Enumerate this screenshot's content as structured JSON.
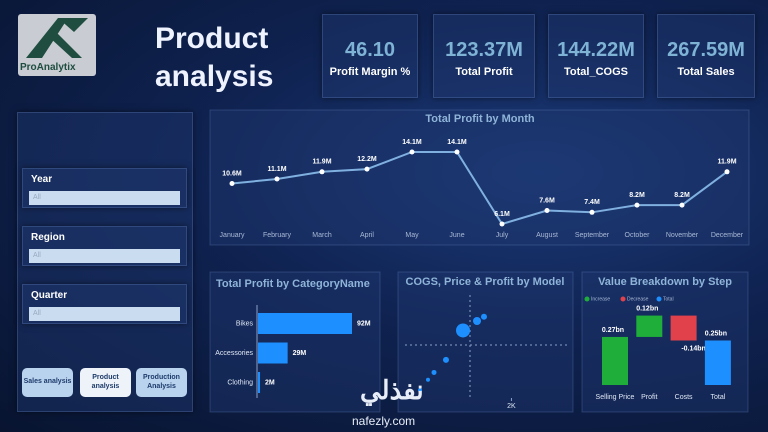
{
  "logo": {
    "text": "ProAnalytix"
  },
  "header": {
    "title": "Product analysis"
  },
  "kpis": [
    {
      "value": "46.10",
      "label": "Profit Margin %"
    },
    {
      "value": "123.37M",
      "label": "Total Profit"
    },
    {
      "value": "144.22M",
      "label": "Total_COGS"
    },
    {
      "value": "267.59M",
      "label": "Total Sales"
    }
  ],
  "slicers": [
    {
      "label": "Year",
      "value": "All"
    },
    {
      "label": "Region",
      "value": "All"
    },
    {
      "label": "Quarter",
      "value": "All"
    }
  ],
  "buttons": [
    "Sales analysis",
    "Product analysis",
    "Production Analysis"
  ],
  "watermark": {
    "arabic": "نفذلي",
    "url": "nafezly.com"
  },
  "chart_data": [
    {
      "type": "line",
      "title": "Total Profit by Month",
      "color": "#7fb0e0",
      "categories": [
        "January",
        "February",
        "March",
        "April",
        "May",
        "June",
        "July",
        "August",
        "September",
        "October",
        "November",
        "December"
      ],
      "values": [
        10.6,
        11.1,
        11.9,
        12.2,
        14.1,
        14.1,
        6.1,
        7.6,
        7.4,
        8.2,
        8.2,
        11.9
      ],
      "value_labels": [
        "10.6M",
        "11.1M",
        "11.9M",
        "12.2M",
        "14.1M",
        "14.1M",
        "6.1M",
        "7.6M",
        "7.4M",
        "8.2M",
        "8.2M",
        "11.9M"
      ]
    },
    {
      "type": "hbar",
      "title": "Total Profit by CategoryName",
      "color": "#1e8fff",
      "categories": [
        "Bikes",
        "Accessories",
        "Clothing"
      ],
      "values": [
        92,
        29,
        2
      ],
      "value_labels": [
        "92M",
        "29M",
        "2M"
      ]
    },
    {
      "type": "scatter",
      "title": "COGS, Price & Profit by Model",
      "color": "#1e8fff",
      "x": [
        282,
        432,
        545,
        770,
        1090,
        1353,
        1484
      ],
      "values": [
        14,
        24,
        31,
        43,
        71,
        80,
        84
      ],
      "sizes": [
        2,
        2,
        2.5,
        3,
        7,
        4,
        3
      ],
      "xlim": [
        0,
        3100
      ],
      "ylim": [
        0,
        100
      ],
      "xticks": [
        {
          "value": 2000,
          "label": "2K"
        }
      ]
    },
    {
      "type": "waterfall",
      "title": "Value Breakdown by Step",
      "legend": [
        {
          "name": "Increase",
          "color": "#1fae3a"
        },
        {
          "name": "Decrease",
          "color": "#e0414b"
        },
        {
          "name": "Total",
          "color": "#1e8fff"
        }
      ],
      "categories": [
        "Selling Price",
        "Profit",
        "Costs",
        "Total"
      ],
      "values": [
        0.27,
        0.12,
        -0.14,
        0.25
      ],
      "value_labels": [
        "0.27bn",
        "0.12bn",
        "-0.14bn",
        "0.25bn"
      ]
    }
  ]
}
